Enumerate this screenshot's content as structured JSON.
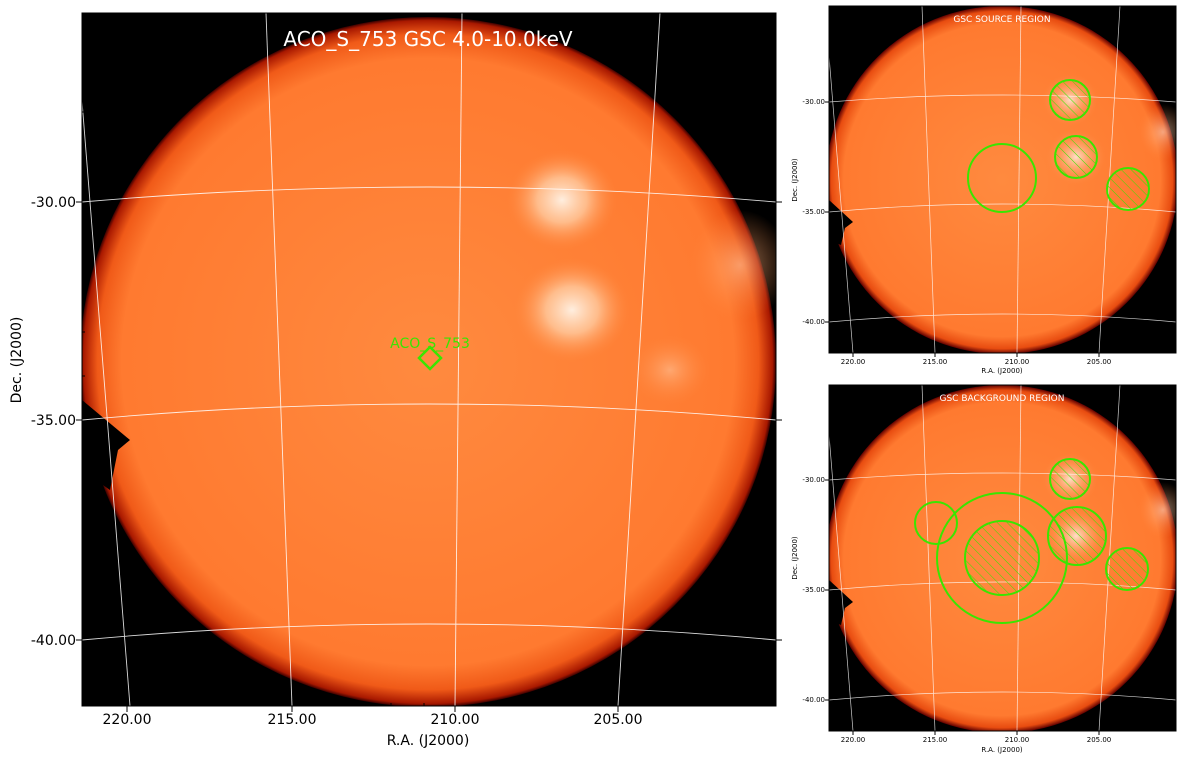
{
  "main": {
    "title": "ACO_S_753 GSC 4.0-10.0keV",
    "target_label": "ACO_S_753",
    "xlabel": "R.A. (J2000)",
    "ylabel": "Dec. (J2000)",
    "ra_ticks": [
      "220.00",
      "215.00",
      "210.00",
      "205.00"
    ],
    "dec_ticks": [
      "-30.00",
      "-35.00",
      "-40.00"
    ]
  },
  "source_panel": {
    "title": "GSC SOURCE REGION",
    "xlabel": "R.A. (J2000)",
    "ylabel": "Dec. (J2000)",
    "ra_ticks": [
      "220.00",
      "215.00",
      "210.00",
      "205.00"
    ],
    "dec_ticks": [
      "-30.00",
      "-35.00",
      "-40.00"
    ]
  },
  "background_panel": {
    "title": "GSC BACKGROUND REGION",
    "xlabel": "R.A. (J2000)",
    "ylabel": "Dec. (J2000)",
    "ra_ticks": [
      "220.00",
      "215.00",
      "210.00",
      "205.00"
    ],
    "dec_ticks": [
      "-30.00",
      "-35.00",
      "-40.00"
    ]
  },
  "colors": {
    "disk": "#ff7d32",
    "edge": "#b01800",
    "sky": "#000000",
    "region": "#39e600",
    "grid": "#ffffff",
    "title_text": "#ffffff"
  }
}
